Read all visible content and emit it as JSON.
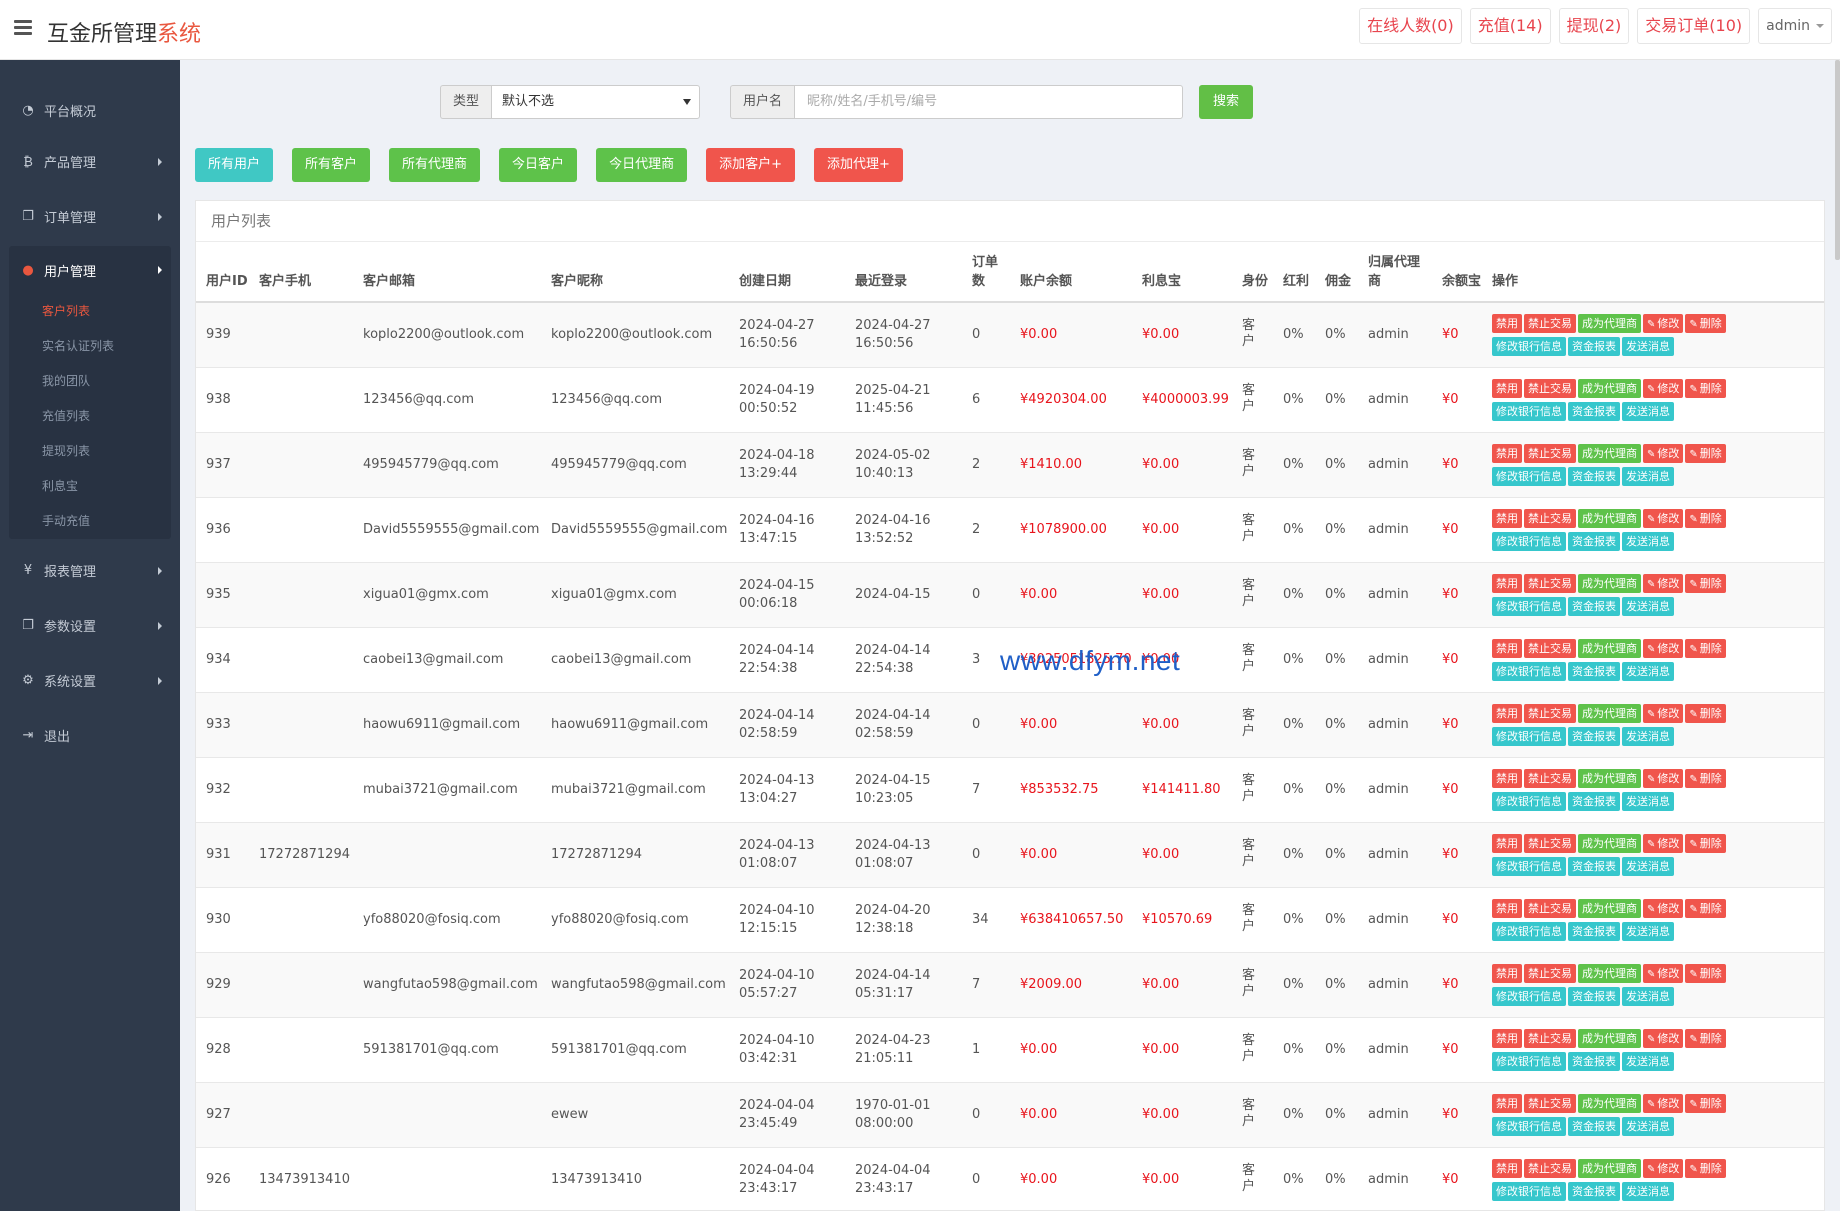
{
  "header": {
    "title_main": "互金所管理",
    "title_accent": "系统",
    "actions": [
      "在线人数(0)",
      "充值(14)",
      "提现(2)",
      "交易订单(10)"
    ],
    "user": "admin"
  },
  "sidebar": {
    "items": [
      {
        "label": "平台概况",
        "icon": "dashboard-icon"
      },
      {
        "label": "产品管理",
        "icon": "bitcoin-icon"
      },
      {
        "label": "订单管理",
        "icon": "copy-icon"
      },
      {
        "label": "用户管理",
        "icon": "user-icon"
      },
      {
        "label": "报表管理",
        "icon": "yen-icon"
      },
      {
        "label": "参数设置",
        "icon": "copy-icon"
      },
      {
        "label": "系统设置",
        "icon": "gears-icon"
      },
      {
        "label": "退出",
        "icon": "signout-icon"
      }
    ],
    "sub_items": [
      "客户列表",
      "实名认证列表",
      "我的团队",
      "充值列表",
      "提现列表",
      "利息宝",
      "手动充值"
    ]
  },
  "search": {
    "type_label": "类型",
    "type_value": "默认不选",
    "user_label": "用户名",
    "user_placeholder": "昵称/姓名/手机号/编号",
    "search_button": "搜索"
  },
  "filters": [
    "所有用户",
    "所有客户",
    "所有代理商",
    "今日客户",
    "今日代理商",
    "添加客户+",
    "添加代理+"
  ],
  "panel_title": "用户列表",
  "columns": [
    "用户ID",
    "客户手机",
    "客户邮箱",
    "客户昵称",
    "创建日期",
    "最近登录",
    "订单数",
    "账户余额",
    "利息宝",
    "身份",
    "红利",
    "佣金",
    "归属代理商",
    "余额宝",
    "操作"
  ],
  "ops": {
    "row1": [
      "禁用",
      "禁止交易",
      "成为代理商",
      "修改",
      "删除"
    ],
    "row2": [
      "修改银行信息",
      "资金报表",
      "发送消息"
    ]
  },
  "rows": [
    {
      "id": "939",
      "phone": "",
      "email": "koplo2200@outlook.com",
      "nick": "koplo2200@outlook.com",
      "created_d": "2024-04-27",
      "created_t": "16:50:56",
      "login_d": "2024-04-27",
      "login_t": "16:50:56",
      "orders": "0",
      "balance": "¥0.00",
      "interest": "¥0.00",
      "role": "客户",
      "bonus": "0%",
      "commission": "0%",
      "agent": "admin",
      "yuebao": "¥0"
    },
    {
      "id": "938",
      "phone": "",
      "email": "123456@qq.com",
      "nick": "123456@qq.com",
      "created_d": "2024-04-19",
      "created_t": "00:50:52",
      "login_d": "2025-04-21",
      "login_t": "11:45:56",
      "orders": "6",
      "balance": "¥4920304.00",
      "interest": "¥4000003.99",
      "role": "客户",
      "bonus": "0%",
      "commission": "0%",
      "agent": "admin",
      "yuebao": "¥0"
    },
    {
      "id": "937",
      "phone": "",
      "email": "495945779@qq.com",
      "nick": "495945779@qq.com",
      "created_d": "2024-04-18",
      "created_t": "13:29:44",
      "login_d": "2024-05-02",
      "login_t": "10:40:13",
      "orders": "2",
      "balance": "¥1410.00",
      "interest": "¥0.00",
      "role": "客户",
      "bonus": "0%",
      "commission": "0%",
      "agent": "admin",
      "yuebao": "¥0"
    },
    {
      "id": "936",
      "phone": "",
      "email": "David5559555@gmail.com",
      "nick": "David5559555@gmail.com",
      "created_d": "2024-04-16",
      "created_t": "13:47:15",
      "login_d": "2024-04-16",
      "login_t": "13:52:52",
      "orders": "2",
      "balance": "¥1078900.00",
      "interest": "¥0.00",
      "role": "客户",
      "bonus": "0%",
      "commission": "0%",
      "agent": "admin",
      "yuebao": "¥0"
    },
    {
      "id": "935",
      "phone": "",
      "email": "xigua01@gmx.com",
      "nick": "xigua01@gmx.com",
      "created_d": "2024-04-15",
      "created_t": "00:06:18",
      "login_d": "2024-04-15",
      "login_t": "",
      "orders": "0",
      "balance": "¥0.00",
      "interest": "¥0.00",
      "role": "客户",
      "bonus": "0%",
      "commission": "0%",
      "agent": "admin",
      "yuebao": "¥0"
    },
    {
      "id": "934",
      "phone": "",
      "email": "caobei13@gmail.com",
      "nick": "caobei13@gmail.com",
      "created_d": "2024-04-14",
      "created_t": "22:54:38",
      "login_d": "2024-04-14",
      "login_t": "22:54:38",
      "orders": "3",
      "balance": "¥3025051825.70",
      "interest": "¥0.00",
      "role": "客户",
      "bonus": "0%",
      "commission": "0%",
      "agent": "admin",
      "yuebao": "¥0"
    },
    {
      "id": "933",
      "phone": "",
      "email": "haowu6911@gmail.com",
      "nick": "haowu6911@gmail.com",
      "created_d": "2024-04-14",
      "created_t": "02:58:59",
      "login_d": "2024-04-14",
      "login_t": "02:58:59",
      "orders": "0",
      "balance": "¥0.00",
      "interest": "¥0.00",
      "role": "客户",
      "bonus": "0%",
      "commission": "0%",
      "agent": "admin",
      "yuebao": "¥0"
    },
    {
      "id": "932",
      "phone": "",
      "email": "mubai3721@gmail.com",
      "nick": "mubai3721@gmail.com",
      "created_d": "2024-04-13",
      "created_t": "13:04:27",
      "login_d": "2024-04-15",
      "login_t": "10:23:05",
      "orders": "7",
      "balance": "¥853532.75",
      "interest": "¥141411.80",
      "role": "客户",
      "bonus": "0%",
      "commission": "0%",
      "agent": "admin",
      "yuebao": "¥0"
    },
    {
      "id": "931",
      "phone": "17272871294",
      "email": "",
      "nick": "17272871294",
      "created_d": "2024-04-13",
      "created_t": "01:08:07",
      "login_d": "2024-04-13",
      "login_t": "01:08:07",
      "orders": "0",
      "balance": "¥0.00",
      "interest": "¥0.00",
      "role": "客户",
      "bonus": "0%",
      "commission": "0%",
      "agent": "admin",
      "yuebao": "¥0"
    },
    {
      "id": "930",
      "phone": "",
      "email": "yfo88020@fosiq.com",
      "nick": "yfo88020@fosiq.com",
      "created_d": "2024-04-10",
      "created_t": "12:15:15",
      "login_d": "2024-04-20",
      "login_t": "12:38:18",
      "orders": "34",
      "balance": "¥638410657.50",
      "interest": "¥10570.69",
      "role": "客户",
      "bonus": "0%",
      "commission": "0%",
      "agent": "admin",
      "yuebao": "¥0"
    },
    {
      "id": "929",
      "phone": "",
      "email": "wangfutao598@gmail.com",
      "nick": "wangfutao598@gmail.com",
      "created_d": "2024-04-10",
      "created_t": "05:57:27",
      "login_d": "2024-04-14",
      "login_t": "05:31:17",
      "orders": "7",
      "balance": "¥2009.00",
      "interest": "¥0.00",
      "role": "客户",
      "bonus": "0%",
      "commission": "0%",
      "agent": "admin",
      "yuebao": "¥0"
    },
    {
      "id": "928",
      "phone": "",
      "email": "591381701@qq.com",
      "nick": "591381701@qq.com",
      "created_d": "2024-04-10",
      "created_t": "03:42:31",
      "login_d": "2024-04-23",
      "login_t": "21:05:11",
      "orders": "1",
      "balance": "¥0.00",
      "interest": "¥0.00",
      "role": "客户",
      "bonus": "0%",
      "commission": "0%",
      "agent": "admin",
      "yuebao": "¥0"
    },
    {
      "id": "927",
      "phone": "",
      "email": "",
      "nick": "ewew",
      "created_d": "2024-04-04",
      "created_t": "23:45:49",
      "login_d": "1970-01-01",
      "login_t": "08:00:00",
      "orders": "0",
      "balance": "¥0.00",
      "interest": "¥0.00",
      "role": "客户",
      "bonus": "0%",
      "commission": "0%",
      "agent": "admin",
      "yuebao": "¥0"
    },
    {
      "id": "926",
      "phone": "13473913410",
      "email": "",
      "nick": "13473913410",
      "created_d": "2024-04-04",
      "created_t": "23:43:17",
      "login_d": "2024-04-04",
      "login_t": "23:43:17",
      "orders": "0",
      "balance": "¥0.00",
      "interest": "¥0.00",
      "role": "客户",
      "bonus": "0%",
      "commission": "0%",
      "agent": "admin",
      "yuebao": "¥0"
    }
  ],
  "watermark": "www.dfym.net",
  "colors": {
    "accent": "#e9573f",
    "sidebar": "#2f3a4b",
    "red": "#f0554c",
    "green": "#5ec24a",
    "teal": "#40c8c4",
    "money": "#e8141c"
  }
}
